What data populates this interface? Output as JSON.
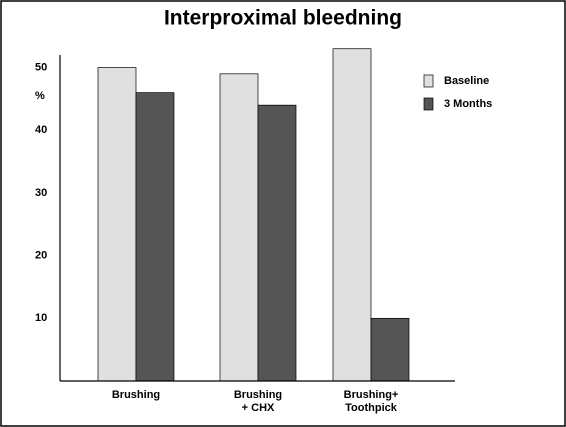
{
  "chart_data": {
    "type": "bar",
    "title": "Interproximal bleedning",
    "y_label": "%",
    "categories": [
      "Brushing",
      "Brushing\n+ CHX",
      "Brushing+\nToothpick"
    ],
    "series": [
      {
        "name": "Baseline",
        "color": "#e0e0e0",
        "values": [
          50,
          49,
          53
        ]
      },
      {
        "name": "3 Months",
        "color": "#555555",
        "values": [
          46,
          44,
          10
        ]
      }
    ],
    "ylim": [
      0,
      52
    ],
    "yticks": [
      10,
      20,
      30,
      40,
      50
    ],
    "grid": false,
    "legend": "upper right"
  }
}
